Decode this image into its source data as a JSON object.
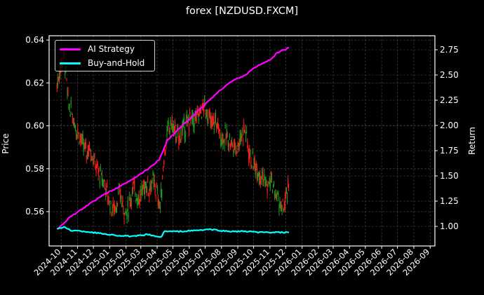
{
  "title": "forex [NZDUSD.FXCM]",
  "chart_data": {
    "type": "line",
    "title": "forex [NZDUSD.FXCM]",
    "xlabel": "",
    "ylabel_left": "Price",
    "ylabel_right": "Return",
    "x_tick_labels": [
      "2024-10",
      "2024-11",
      "2024-12",
      "2025-01",
      "2025-02",
      "2025-03",
      "2025-04",
      "2025-05",
      "2025-06",
      "2025-07",
      "2025-08",
      "2025-09",
      "2025-10",
      "2025-11",
      "2025-12",
      "2026-01",
      "2026-02",
      "2026-03",
      "2026-04",
      "2026-05",
      "2026-06",
      "2026-07",
      "2026-08",
      "2026-09"
    ],
    "y_left_ticks": [
      0.56,
      0.58,
      0.6,
      0.62,
      0.64
    ],
    "y_left_range": [
      0.544,
      0.642
    ],
    "y_right_ticks": [
      1.0,
      1.25,
      1.5,
      1.75,
      2.0,
      2.25,
      2.5,
      2.75
    ],
    "y_right_range": [
      0.806,
      2.889
    ],
    "grid": true,
    "legend_position": "upper left",
    "legend": [
      "AI Strategy",
      "Buy-and-Hold"
    ],
    "colors": {
      "ai_strategy": "#ff00ff",
      "buy_and_hold": "#00ffff",
      "candle_up": "#1f9a1f",
      "candle_down": "#ff1a1a",
      "background": "#000000",
      "grid": "#444444"
    },
    "price_series": {
      "name": "NZDUSD price (candles)",
      "axis": "left",
      "dates": [
        "2024-09-23",
        "2024-09-30",
        "2024-10-07",
        "2024-10-14",
        "2024-10-21",
        "2024-10-28",
        "2024-11-04",
        "2024-11-11",
        "2024-11-18",
        "2024-11-25",
        "2024-12-02",
        "2024-12-09",
        "2024-12-16",
        "2024-12-23",
        "2024-12-30",
        "2025-01-06",
        "2025-01-13",
        "2025-01-20",
        "2025-01-27",
        "2025-02-03",
        "2025-02-10",
        "2025-02-17",
        "2025-02-24",
        "2025-03-03",
        "2025-03-10",
        "2025-03-17",
        "2025-03-24",
        "2025-03-31",
        "2025-04-07",
        "2025-04-14",
        "2025-04-21",
        "2025-04-28",
        "2025-05-05",
        "2025-05-12",
        "2025-05-19",
        "2025-05-26",
        "2025-06-02",
        "2025-06-09",
        "2025-06-16",
        "2025-06-23",
        "2025-06-30",
        "2025-07-07",
        "2025-07-14",
        "2025-07-21",
        "2025-07-28",
        "2025-08-04",
        "2025-08-11",
        "2025-08-18",
        "2025-08-25",
        "2025-09-01",
        "2025-09-08",
        "2025-09-15",
        "2025-09-22",
        "2025-09-29",
        "2025-10-06",
        "2025-10-13",
        "2025-10-20",
        "2025-10-27",
        "2025-11-03",
        "2025-11-10",
        "2025-11-17",
        "2025-11-24",
        "2025-12-01",
        "2025-12-08"
      ],
      "values": [
        0.619,
        0.628,
        0.633,
        0.611,
        0.606,
        0.6,
        0.596,
        0.591,
        0.588,
        0.59,
        0.584,
        0.579,
        0.576,
        0.573,
        0.566,
        0.561,
        0.563,
        0.569,
        0.562,
        0.559,
        0.567,
        0.571,
        0.566,
        0.569,
        0.573,
        0.571,
        0.574,
        0.569,
        0.562,
        0.585,
        0.597,
        0.601,
        0.597,
        0.594,
        0.598,
        0.6,
        0.603,
        0.602,
        0.604,
        0.607,
        0.609,
        0.605,
        0.6,
        0.603,
        0.597,
        0.594,
        0.595,
        0.593,
        0.59,
        0.591,
        0.596,
        0.599,
        0.588,
        0.583,
        0.581,
        0.578,
        0.576,
        0.571,
        0.575,
        0.569,
        0.566,
        0.56,
        0.565,
        0.574
      ]
    },
    "series": [
      {
        "name": "AI Strategy",
        "axis": "right",
        "dates": [
          "2024-09-23",
          "2024-10-15",
          "2024-11-15",
          "2024-12-15",
          "2025-01-15",
          "2025-02-15",
          "2025-03-15",
          "2025-04-05",
          "2025-04-20",
          "2025-05-15",
          "2025-06-15",
          "2025-07-15",
          "2025-08-10",
          "2025-08-25",
          "2025-09-15",
          "2025-10-05",
          "2025-11-01",
          "2025-11-15",
          "2025-12-07"
        ],
        "values": [
          0.97,
          1.08,
          1.19,
          1.3,
          1.38,
          1.47,
          1.57,
          1.66,
          1.85,
          1.98,
          2.13,
          2.28,
          2.4,
          2.45,
          2.5,
          2.58,
          2.65,
          2.72,
          2.77
        ]
      },
      {
        "name": "Buy-and-Hold",
        "axis": "right",
        "dates": [
          "2024-09-23",
          "2024-10-08",
          "2024-10-20",
          "2024-11-15",
          "2024-12-15",
          "2025-01-15",
          "2025-02-15",
          "2025-03-15",
          "2025-04-08",
          "2025-04-15",
          "2025-05-15",
          "2025-06-15",
          "2025-07-10",
          "2025-08-15",
          "2025-09-15",
          "2025-10-15",
          "2025-11-15",
          "2025-12-07"
        ],
        "values": [
          0.98,
          0.99,
          0.96,
          0.95,
          0.93,
          0.91,
          0.9,
          0.92,
          0.89,
          0.95,
          0.95,
          0.96,
          0.97,
          0.95,
          0.95,
          0.94,
          0.94,
          0.94
        ]
      }
    ]
  },
  "legend": {
    "items": [
      {
        "label": "AI Strategy",
        "color": "#ff00ff"
      },
      {
        "label": "Buy-and-Hold",
        "color": "#00ffff"
      }
    ]
  }
}
